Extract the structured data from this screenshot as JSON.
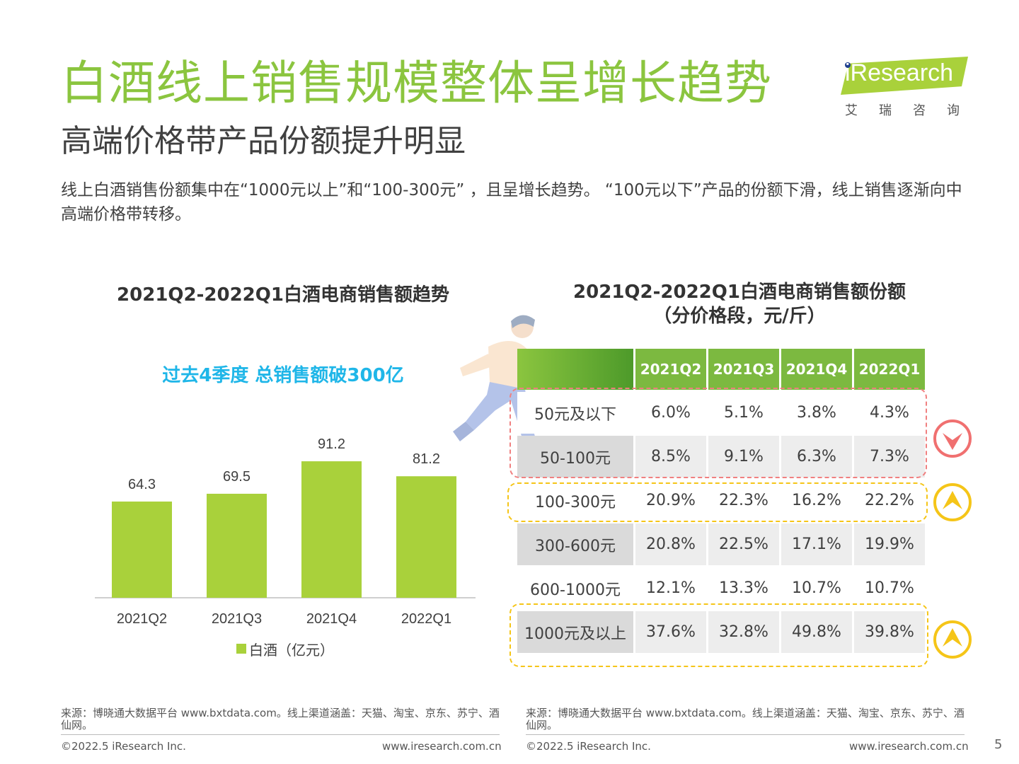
{
  "header": {
    "title": "白酒线上销售规模整体呈增长趋势",
    "subtitle": "高端价格带产品份额提升明显",
    "description": "线上白酒销售份额集中在“1000元以上”和“100-300元” ，且呈增长趋势。 “100元以下”产品的份额下滑，线上销售逐渐向中高端价格带转移。"
  },
  "logo": {
    "text": "iResearch",
    "cn": "艾瑞咨询",
    "brand_color": "#a9d13b"
  },
  "left_chart": {
    "title": "2021Q2-2022Q1白酒电商销售额趋势",
    "highlight": "过去4季度 总销售额破300亿",
    "legend": "白酒（亿元）"
  },
  "right_table": {
    "title_line1": "2021Q2-2022Q1白酒电商销售额份额",
    "title_line2": "（分价格段，元/斤）",
    "columns": [
      "2021Q2",
      "2021Q3",
      "2021Q4",
      "2022Q1"
    ],
    "rows": [
      {
        "label": "50元及以下",
        "values": [
          "6.0%",
          "5.1%",
          "3.8%",
          "4.3%"
        ]
      },
      {
        "label": "50-100元",
        "values": [
          "8.5%",
          "9.1%",
          "6.3%",
          "7.3%"
        ]
      },
      {
        "label": "100-300元",
        "values": [
          "20.9%",
          "22.3%",
          "16.2%",
          "22.2%"
        ]
      },
      {
        "label": "300-600元",
        "values": [
          "20.8%",
          "22.5%",
          "17.1%",
          "19.9%"
        ]
      },
      {
        "label": "600-1000元",
        "values": [
          "12.1%",
          "13.3%",
          "10.7%",
          "10.7%"
        ]
      },
      {
        "label": "1000元及以上",
        "values": [
          "37.6%",
          "32.8%",
          "49.8%",
          "39.8%"
        ]
      }
    ],
    "indicators": [
      {
        "target": "50-100元 range",
        "direction": "down",
        "color": "#f07070"
      },
      {
        "target": "100-300元",
        "direction": "up",
        "color": "#f5c518"
      },
      {
        "target": "1000元及以上",
        "direction": "up",
        "color": "#f5c518"
      }
    ]
  },
  "chart_data": {
    "type": "bar",
    "categories": [
      "2021Q2",
      "2021Q3",
      "2021Q4",
      "2022Q1"
    ],
    "series": [
      {
        "name": "白酒（亿元）",
        "values": [
          64.3,
          69.5,
          91.2,
          81.2
        ]
      }
    ],
    "title": "2021Q2-2022Q1白酒电商销售额趋势",
    "xlabel": "",
    "ylabel": "",
    "ylim": [
      0,
      130
    ],
    "grid": false,
    "legend": "bottom",
    "color": "#a9d13b"
  },
  "footer": {
    "source": "来源：博晓通大数据平台 www.bxtdata.com。线上渠道涵盖：天猫、淘宝、京东、苏宁、酒仙网。",
    "copyright": "©2022.5 iResearch Inc.",
    "url": "www.iresearch.com.cn",
    "page": "5"
  }
}
